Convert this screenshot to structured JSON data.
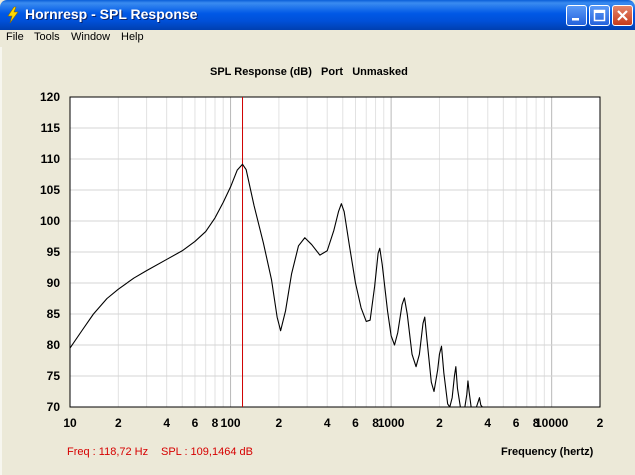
{
  "window": {
    "title": "Hornresp - SPL Response"
  },
  "menu": {
    "items": [
      "File",
      "Tools",
      "Window",
      "Help"
    ]
  },
  "chart_data": {
    "type": "line",
    "title": "SPL Response (dB)   Port   Unmasked",
    "xlabel": "Frequency (hertz)",
    "ylabel": "",
    "x_scale": "log",
    "xlim": [
      10,
      20000
    ],
    "ylim": [
      70,
      120
    ],
    "y_ticks": [
      70,
      75,
      80,
      85,
      90,
      95,
      100,
      105,
      110,
      115,
      120
    ],
    "x_tick_labels": [
      {
        "f": 10,
        "label": "10"
      },
      {
        "f": 20,
        "label": "2"
      },
      {
        "f": 40,
        "label": "4"
      },
      {
        "f": 60,
        "label": "6"
      },
      {
        "f": 80,
        "label": "8"
      },
      {
        "f": 100,
        "label": "100"
      },
      {
        "f": 200,
        "label": "2"
      },
      {
        "f": 400,
        "label": "4"
      },
      {
        "f": 600,
        "label": "6"
      },
      {
        "f": 800,
        "label": "8"
      },
      {
        "f": 1000,
        "label": "1000"
      },
      {
        "f": 2000,
        "label": "2"
      },
      {
        "f": 4000,
        "label": "4"
      },
      {
        "f": 6000,
        "label": "6"
      },
      {
        "f": 8000,
        "label": "8"
      },
      {
        "f": 10000,
        "label": "10000"
      },
      {
        "f": 20000,
        "label": "2"
      }
    ],
    "grid": true,
    "marker_frequency": 118.72,
    "series": [
      {
        "color": "#000000",
        "points": [
          [
            10,
            79.5
          ],
          [
            12,
            82.5
          ],
          [
            14,
            85
          ],
          [
            17,
            87.5
          ],
          [
            20,
            89
          ],
          [
            25,
            90.8
          ],
          [
            30,
            92
          ],
          [
            40,
            93.8
          ],
          [
            50,
            95.2
          ],
          [
            60,
            96.7
          ],
          [
            70,
            98.3
          ],
          [
            80,
            100.5
          ],
          [
            90,
            103
          ],
          [
            100,
            105.5
          ],
          [
            110,
            108.2
          ],
          [
            118.72,
            109.15
          ],
          [
            125,
            108.3
          ],
          [
            140,
            102.5
          ],
          [
            160,
            96.5
          ],
          [
            180,
            90.5
          ],
          [
            195,
            84.5
          ],
          [
            205,
            82.3
          ],
          [
            220,
            85.5
          ],
          [
            240,
            91.5
          ],
          [
            265,
            96
          ],
          [
            290,
            97.3
          ],
          [
            320,
            96.2
          ],
          [
            360,
            94.5
          ],
          [
            400,
            95.2
          ],
          [
            440,
            98.5
          ],
          [
            470,
            101.5
          ],
          [
            490,
            102.8
          ],
          [
            510,
            101.5
          ],
          [
            550,
            96
          ],
          [
            600,
            90
          ],
          [
            650,
            86
          ],
          [
            700,
            83.8
          ],
          [
            740,
            84
          ],
          [
            790,
            89.5
          ],
          [
            830,
            94.8
          ],
          [
            850,
            95.6
          ],
          [
            880,
            93
          ],
          [
            950,
            85.5
          ],
          [
            1000,
            81.5
          ],
          [
            1050,
            80
          ],
          [
            1100,
            82
          ],
          [
            1170,
            86.5
          ],
          [
            1210,
            87.6
          ],
          [
            1260,
            85
          ],
          [
            1350,
            78.5
          ],
          [
            1430,
            76.5
          ],
          [
            1500,
            78.5
          ],
          [
            1580,
            83.5
          ],
          [
            1620,
            84.5
          ],
          [
            1670,
            81
          ],
          [
            1780,
            74
          ],
          [
            1850,
            72.5
          ],
          [
            1950,
            76
          ],
          [
            2000,
            78.5
          ],
          [
            2060,
            79.8
          ],
          [
            2130,
            75.5
          ],
          [
            2250,
            70.5
          ],
          [
            2320,
            70
          ],
          [
            2400,
            71.5
          ],
          [
            2480,
            75
          ],
          [
            2530,
            76.5
          ],
          [
            2590,
            73
          ],
          [
            2700,
            70
          ],
          [
            2880,
            70
          ],
          [
            2960,
            72
          ],
          [
            3010,
            74.2
          ],
          [
            3060,
            72.5
          ],
          [
            3150,
            70
          ],
          [
            3400,
            70
          ],
          [
            3500,
            71
          ],
          [
            3550,
            71.5
          ],
          [
            3620,
            70.3
          ],
          [
            3700,
            70
          ]
        ]
      }
    ]
  },
  "status": {
    "freq_readout": "Freq : 118,72 Hz",
    "spl_readout": "SPL : 109,1464 dB"
  },
  "colors": {
    "plot_background": "#ffffff",
    "grid": "#d4d4d4",
    "curve": "#000000",
    "marker": "#d00000",
    "readout": "#d60000"
  }
}
